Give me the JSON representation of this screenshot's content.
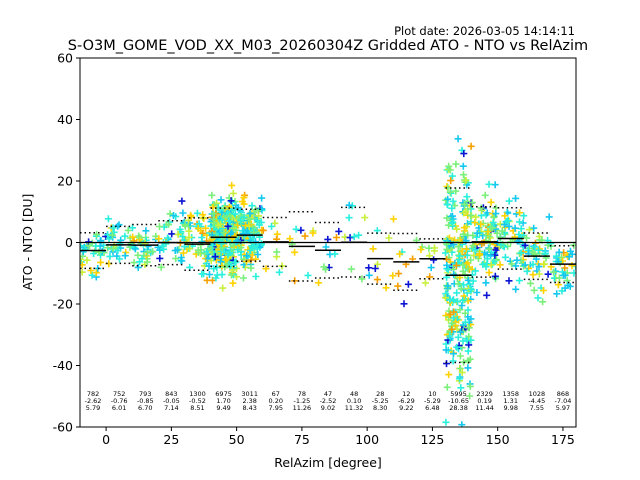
{
  "chart_data": {
    "type": "scatter",
    "plot_date": "Plot date: 2026-03-05 14:14:11",
    "title": "S-O3M_GOME_VOD_XX_M03_20260304Z Gridded ATO - NTO vs RelAzim",
    "xlabel": "RelAzim [degree]",
    "ylabel": "ATO - NTO [DU]",
    "xlim": [
      -10,
      180
    ],
    "ylim": [
      -60,
      60
    ],
    "xticks": [
      0,
      25,
      50,
      75,
      100,
      125,
      150,
      175
    ],
    "yticks": [
      -60,
      -40,
      -20,
      0,
      20,
      40,
      60
    ],
    "colors": {
      "dark_blue": "#0a14d2",
      "light_blue": "#14c8f0",
      "cyan": "#28f0dc",
      "green": "#7af07a",
      "yellow_green": "#c8f03c",
      "yellow": "#ffd200",
      "orange": "#f5a000"
    },
    "zero_line": 0,
    "bins": [
      {
        "center": -5,
        "count": "782",
        "mean": "-2.62",
        "std": "5.79"
      },
      {
        "center": 5,
        "count": "752",
        "mean": "-0.76",
        "std": "6.01"
      },
      {
        "center": 15,
        "count": "793",
        "mean": "-0.85",
        "std": "6.70"
      },
      {
        "center": 25,
        "count": "843",
        "mean": "-0.05",
        "std": "7.14"
      },
      {
        "center": 35,
        "count": "1300",
        "mean": "-0.52",
        "std": "8.51"
      },
      {
        "center": 45,
        "count": "6975",
        "mean": "1.70",
        "std": "9.49"
      },
      {
        "center": 55,
        "count": "3011",
        "mean": "2.38",
        "std": "8.43"
      },
      {
        "center": 65,
        "count": "67",
        "mean": "0.20",
        "std": "7.95"
      },
      {
        "center": 75,
        "count": "78",
        "mean": "-1.25",
        "std": "11.26"
      },
      {
        "center": 85,
        "count": "47",
        "mean": "-2.52",
        "std": "9.02"
      },
      {
        "center": 95,
        "count": "48",
        "mean": "0.10",
        "std": "11.32"
      },
      {
        "center": 105,
        "count": "28",
        "mean": "-5.25",
        "std": "8.30"
      },
      {
        "center": 115,
        "count": "12",
        "mean": "-6.29",
        "std": "9.22"
      },
      {
        "center": 125,
        "count": "10",
        "mean": "-5.29",
        "std": "6.48"
      },
      {
        "center": 135,
        "count": "5995",
        "mean": "-10.65",
        "std": "28.38"
      },
      {
        "center": 145,
        "count": "2329",
        "mean": "0.19",
        "std": "11.44"
      },
      {
        "center": 155,
        "count": "1358",
        "mean": "1.31",
        "std": "9.98"
      },
      {
        "center": 165,
        "count": "1028",
        "mean": "-4.45",
        "std": "7.55"
      },
      {
        "center": 175,
        "count": "868",
        "mean": "-7.04",
        "std": "5.97"
      }
    ]
  }
}
